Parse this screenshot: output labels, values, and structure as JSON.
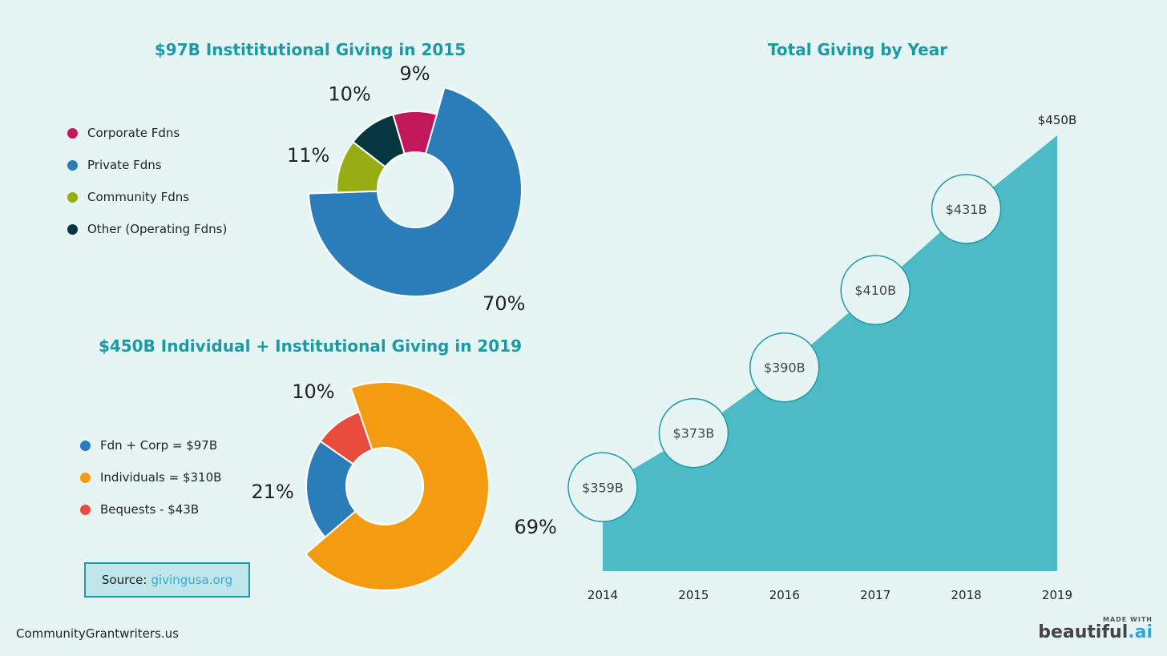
{
  "charts": {
    "donut1": {
      "title": "$97B Instititutional Giving in 2015",
      "legend": [
        {
          "label": "Corporate Fdns",
          "color": "#c2185b"
        },
        {
          "label": "Private Fdns",
          "color": "#2a7db8"
        },
        {
          "label": "Community Fdns",
          "color": "#97ad14"
        },
        {
          "label": "Other (Operating Fdns)",
          "color": "#06363f"
        }
      ]
    },
    "donut2": {
      "title": "$450B Individual + Institutional Giving in 2019",
      "legend": [
        {
          "label": "Fdn + Corp = $97B",
          "color": "#2a7db8"
        },
        {
          "label": "Individuals = $310B",
          "color": "#f39c12"
        },
        {
          "label": "Bequests - $43B",
          "color": "#e74c3c"
        }
      ]
    },
    "area": {
      "title": "Total Giving by Year"
    }
  },
  "chart_data": [
    {
      "type": "pie",
      "title": "$97B Instititutional Giving in 2015",
      "categories": [
        "Private Fdns",
        "Community Fdns",
        "Other (Operating Fdns)",
        "Corporate Fdns"
      ],
      "values": [
        70,
        11,
        10,
        9
      ],
      "labels": [
        "70%",
        "11%",
        "10%",
        "9%"
      ],
      "colors": [
        "#2a7db8",
        "#97ad14",
        "#06363f",
        "#c2185b"
      ],
      "legend_position": "left"
    },
    {
      "type": "pie",
      "title": "$450B Individual + Institutional Giving in 2019",
      "categories": [
        "Individuals = $310B",
        "Fdn + Corp = $97B",
        "Bequests - $43B"
      ],
      "values": [
        69,
        21,
        10
      ],
      "labels": [
        "69%",
        "21%",
        "10%"
      ],
      "colors": [
        "#f39c12",
        "#2a7db8",
        "#e74c3c"
      ],
      "legend_position": "left"
    },
    {
      "type": "area",
      "title": "Total Giving by Year",
      "x": [
        "2014",
        "2015",
        "2016",
        "2017",
        "2018",
        "2019"
      ],
      "y": [
        359,
        373,
        390,
        410,
        431,
        450
      ],
      "labels": [
        "$359B",
        "$373B",
        "$390B",
        "$410B",
        "$431B",
        "$450B"
      ],
      "unit": "$B",
      "color": "#4dbbc6"
    }
  ],
  "source": {
    "prefix": "Source:",
    "link": "givingusa.org"
  },
  "footer": {
    "left": "CommunityGrantwriters.us",
    "made_with": "MADE WITH",
    "brand_main": "beautiful",
    "brand_dot": ".ai"
  }
}
